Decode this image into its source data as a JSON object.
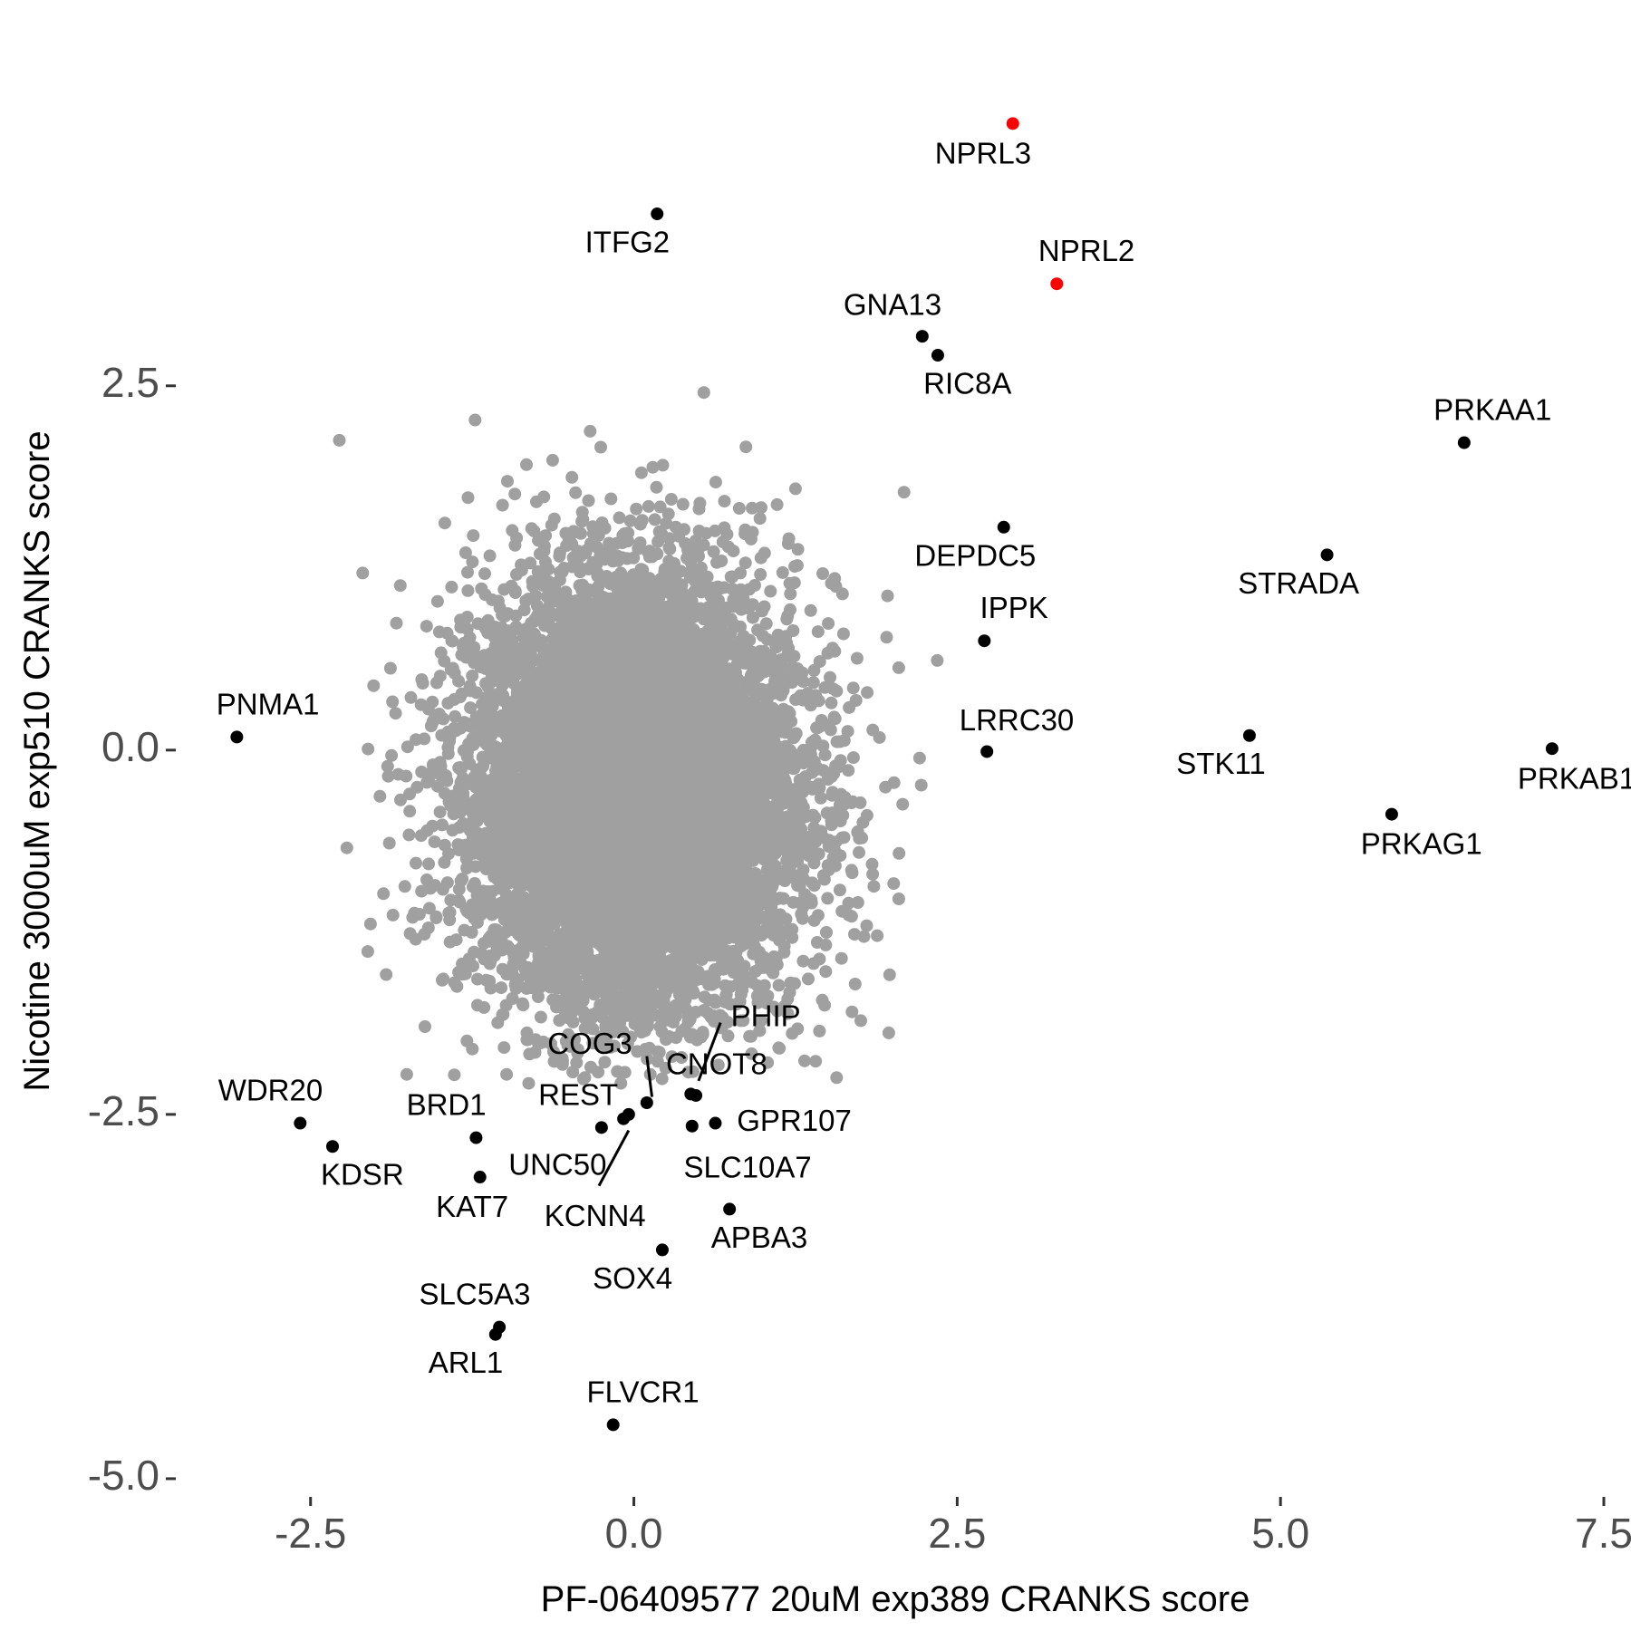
{
  "chart_data": {
    "type": "scatter",
    "xlabel": "PF-06409577 20uM exp389 CRANKS score",
    "ylabel": "Nicotine 3000uM exp510 CRANKS score",
    "xlim": [
      -3.5,
      7.5
    ],
    "ylim": [
      -5.1,
      4.7
    ],
    "x_ticks": [
      -2.5,
      0.0,
      2.5,
      5.0,
      7.5
    ],
    "x_tick_labels": [
      "-2.5",
      "0.0",
      "2.5",
      "5.0",
      "7.5"
    ],
    "y_ticks": [
      2.5,
      0.0,
      -2.5,
      -5.0
    ],
    "y_tick_labels": [
      "2.5",
      "0.0",
      "-2.5",
      "-5.0"
    ],
    "grid": false,
    "colors": {
      "background_points": "#a0a0a0",
      "highlight": "#000000",
      "key_highlight": "#ff0000",
      "tick_label": "#4d4d4d"
    },
    "background_cloud": {
      "description_free": true,
      "center": [
        0.0,
        -0.3
      ],
      "sd": [
        0.62,
        0.72
      ],
      "n_points": 9000,
      "color": "#a0a0a0"
    },
    "series": [
      {
        "values": [
          {
            "gene": "NPRL3",
            "x": 2.93,
            "y": 4.3,
            "color": "#ff0000"
          },
          {
            "gene": "NPRL2",
            "x": 3.27,
            "y": 3.2,
            "color": "#ff0000"
          },
          {
            "gene": "ITFG2",
            "x": 0.18,
            "y": 3.68,
            "color": "#000000"
          },
          {
            "gene": "GNA13",
            "x": 2.23,
            "y": 2.84,
            "color": "#000000"
          },
          {
            "gene": "RIC8A",
            "x": 2.35,
            "y": 2.71,
            "color": "#000000"
          },
          {
            "gene": "PRKAA1",
            "x": 6.42,
            "y": 2.11,
            "color": "#000000"
          },
          {
            "gene": "DEPDC5",
            "x": 2.86,
            "y": 1.53,
            "color": "#000000"
          },
          {
            "gene": "STRADA",
            "x": 5.36,
            "y": 1.34,
            "color": "#000000"
          },
          {
            "gene": "IPPK",
            "x": 2.71,
            "y": 0.75,
            "color": "#000000"
          },
          {
            "gene": "LRRC30",
            "x": 2.73,
            "y": -0.01,
            "color": "#000000"
          },
          {
            "gene": "STK11",
            "x": 4.76,
            "y": 0.1,
            "color": "#000000"
          },
          {
            "gene": "PRKAB1",
            "x": 7.1,
            "y": 0.01,
            "color": "#000000"
          },
          {
            "gene": "PRKAG1",
            "x": 5.86,
            "y": -0.44,
            "color": "#000000"
          },
          {
            "gene": "PNMA1",
            "x": -3.07,
            "y": 0.09,
            "color": "#000000"
          },
          {
            "gene": "WDR20",
            "x": -2.58,
            "y": -2.56,
            "color": "#000000"
          },
          {
            "gene": "KDSR",
            "x": -2.33,
            "y": -2.72,
            "color": "#000000"
          },
          {
            "gene": "BRD1",
            "x": -1.22,
            "y": -2.66,
            "color": "#000000"
          },
          {
            "gene": "KAT7",
            "x": -1.19,
            "y": -2.93,
            "color": "#000000"
          },
          {
            "gene": "REST",
            "x": -0.25,
            "y": -2.59,
            "color": "#000000"
          },
          {
            "gene": "UNC50",
            "x": -0.08,
            "y": -2.53,
            "color": "#000000"
          },
          {
            "gene": "KCNN4",
            "x": -0.04,
            "y": -2.5,
            "color": "#000000"
          },
          {
            "gene": "COG3",
            "x": 0.1,
            "y": -2.42,
            "color": "#000000"
          },
          {
            "gene": "CNOT8",
            "x": 0.44,
            "y": -2.36,
            "color": "#000000"
          },
          {
            "gene": "PHIP",
            "x": 0.48,
            "y": -2.37,
            "color": "#000000"
          },
          {
            "gene": "SLC10A7",
            "x": 0.45,
            "y": -2.58,
            "color": "#000000"
          },
          {
            "gene": "GPR107",
            "x": 0.63,
            "y": -2.56,
            "color": "#000000"
          },
          {
            "gene": "APBA3",
            "x": 0.74,
            "y": -3.15,
            "color": "#000000"
          },
          {
            "gene": "SOX4",
            "x": 0.22,
            "y": -3.43,
            "color": "#000000"
          },
          {
            "gene": "SLC5A3",
            "x": -1.04,
            "y": -3.96,
            "color": "#000000"
          },
          {
            "gene": "ARL1",
            "x": -1.07,
            "y": -4.01,
            "color": "#000000"
          },
          {
            "gene": "FLVCR1",
            "x": -0.16,
            "y": -4.63,
            "color": "#000000"
          }
        ]
      }
    ],
    "labels": [
      {
        "text": "NPRL3",
        "x": 2.7,
        "y": 4.08
      },
      {
        "text": "NPRL2",
        "x": 3.5,
        "y": 3.41
      },
      {
        "text": "ITFG2",
        "x": -0.05,
        "y": 3.47
      },
      {
        "text": "GNA13",
        "x": 2.0,
        "y": 3.04
      },
      {
        "text": "RIC8A",
        "x": 2.58,
        "y": 2.5
      },
      {
        "text": "PRKAA1",
        "x": 6.64,
        "y": 2.32
      },
      {
        "text": "DEPDC5",
        "x": 2.64,
        "y": 1.32
      },
      {
        "text": "STRADA",
        "x": 5.14,
        "y": 1.13
      },
      {
        "text": "IPPK",
        "x": 2.94,
        "y": 0.96
      },
      {
        "text": "LRRC30",
        "x": 2.96,
        "y": 0.19
      },
      {
        "text": "STK11",
        "x": 4.54,
        "y": -0.11
      },
      {
        "text": "PRKAB1",
        "x": 7.29,
        "y": -0.21
      },
      {
        "text": "PRKAG1",
        "x": 6.09,
        "y": -0.66
      },
      {
        "text": "PNMA1",
        "x": -2.83,
        "y": 0.3
      },
      {
        "text": "WDR20",
        "x": -2.81,
        "y": -2.35
      },
      {
        "text": "KDSR",
        "x": -2.1,
        "y": -2.93
      },
      {
        "text": "BRD1",
        "x": -1.45,
        "y": -2.45
      },
      {
        "text": "KAT7",
        "x": -1.25,
        "y": -3.15
      },
      {
        "text": "REST",
        "x": -0.43,
        "y": -2.38
      },
      {
        "text": "UNC50",
        "x": -0.59,
        "y": -2.86
      },
      {
        "text": "KCNN4",
        "x": -0.3,
        "y": -3.21
      },
      {
        "text": "COG3",
        "x": -0.34,
        "y": -2.03
      },
      {
        "text": "CNOT8",
        "x": 0.64,
        "y": -2.17
      },
      {
        "text": "PHIP",
        "x": 1.02,
        "y": -1.84
      },
      {
        "text": "SLC10A7",
        "x": 0.88,
        "y": -2.88
      },
      {
        "text": "GPR107",
        "x": 1.24,
        "y": -2.56
      },
      {
        "text": "APBA3",
        "x": 0.97,
        "y": -3.36
      },
      {
        "text": "SOX4",
        "x": -0.01,
        "y": -3.64
      },
      {
        "text": "SLC5A3",
        "x": -1.23,
        "y": -3.75
      },
      {
        "text": "ARL1",
        "x": -1.3,
        "y": -4.22
      },
      {
        "text": "FLVCR1",
        "x": 0.07,
        "y": -4.42
      }
    ],
    "connectors": [
      {
        "from": [
          0.1,
          -2.1
        ],
        "to": [
          0.14,
          -2.38
        ]
      },
      {
        "from": [
          0.67,
          -1.87
        ],
        "to": [
          0.5,
          -2.27
        ]
      },
      {
        "from": [
          -0.27,
          -2.99
        ],
        "to": [
          -0.04,
          -2.61
        ]
      }
    ]
  }
}
